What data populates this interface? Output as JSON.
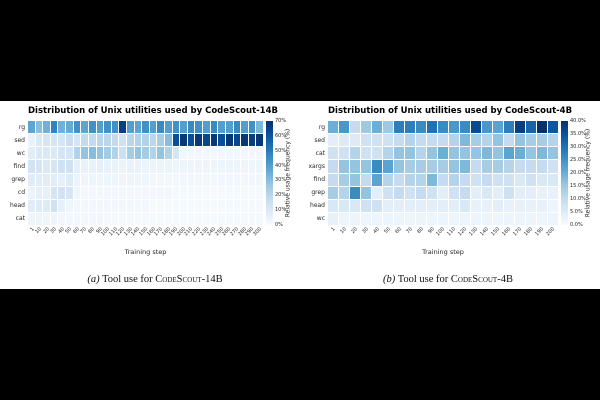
{
  "page": {
    "background_color": "#000000",
    "panel_color": "#ffffff"
  },
  "chart_data": [
    {
      "type": "heatmap",
      "title": "Distribution of Unix utilities used by CodeScout-14B",
      "xlabel": "Training step",
      "colormap": "Blues",
      "colorbar_label": "Relative usage frequency (%)",
      "colorbar_ticks": [
        "70%",
        "60%",
        "50%",
        "40%",
        "30%",
        "20%",
        "10%",
        "0%"
      ],
      "vmin": 0,
      "vmax": 70,
      "x_categories": [
        "1",
        "10",
        "20",
        "30",
        "40",
        "50",
        "60",
        "70",
        "80",
        "90",
        "100",
        "110",
        "120",
        "130",
        "140",
        "150",
        "160",
        "170",
        "180",
        "190",
        "200",
        "210",
        "220",
        "230",
        "240",
        "250",
        "260",
        "270",
        "280",
        "290",
        "300"
      ],
      "y_categories": [
        "rg",
        "sed",
        "wc",
        "find",
        "grep",
        "cd",
        "head",
        "cat"
      ],
      "values": [
        [
          38,
          30,
          34,
          48,
          34,
          36,
          44,
          38,
          44,
          40,
          44,
          44,
          66,
          40,
          38,
          44,
          40,
          46,
          40,
          44,
          40,
          46,
          44,
          40,
          46,
          40,
          40,
          46,
          40,
          44,
          32
        ],
        [
          5,
          10,
          12,
          12,
          12,
          16,
          12,
          18,
          18,
          20,
          20,
          18,
          14,
          20,
          22,
          22,
          20,
          24,
          30,
          62,
          68,
          62,
          68,
          64,
          68,
          62,
          68,
          64,
          68,
          66,
          68
        ],
        [
          8,
          10,
          10,
          10,
          12,
          12,
          22,
          28,
          30,
          28,
          25,
          22,
          15,
          25,
          28,
          25,
          22,
          28,
          22,
          12,
          2,
          2,
          2,
          2,
          2,
          2,
          2,
          2,
          2,
          2,
          2
        ],
        [
          13,
          12,
          10,
          12,
          14,
          14,
          6,
          5,
          5,
          6,
          5,
          5,
          4,
          5,
          5,
          4,
          4,
          4,
          4,
          3,
          3,
          3,
          3,
          3,
          3,
          3,
          3,
          3,
          3,
          3,
          3
        ],
        [
          8,
          8,
          8,
          8,
          6,
          9,
          4,
          3,
          3,
          3,
          3,
          3,
          3,
          3,
          3,
          3,
          2,
          2,
          2,
          2,
          2,
          2,
          2,
          2,
          2,
          2,
          2,
          2,
          2,
          2,
          2
        ],
        [
          4,
          6,
          6,
          12,
          13,
          12,
          3,
          2,
          2,
          2,
          2,
          2,
          2,
          2,
          2,
          2,
          2,
          2,
          2,
          1,
          1,
          1,
          1,
          1,
          1,
          1,
          1,
          1,
          1,
          1,
          1
        ],
        [
          8,
          9,
          9,
          14,
          6,
          3,
          2,
          2,
          2,
          2,
          2,
          2,
          2,
          2,
          2,
          2,
          1,
          1,
          1,
          1,
          1,
          1,
          1,
          1,
          1,
          1,
          1,
          1,
          1,
          1,
          1
        ],
        [
          3,
          3,
          3,
          3,
          2,
          2,
          2,
          2,
          2,
          2,
          1,
          1,
          1,
          1,
          1,
          1,
          1,
          1,
          1,
          1,
          1,
          1,
          1,
          1,
          1,
          1,
          1,
          1,
          1,
          1,
          1
        ]
      ]
    },
    {
      "type": "heatmap",
      "title": "Distribution of Unix utilities used by CodeScout-4B",
      "xlabel": "Training step",
      "colormap": "Blues",
      "colorbar_label": "Relative usage frequency (%)",
      "colorbar_ticks": [
        "40.0%",
        "35.0%",
        "30.0%",
        "25.0%",
        "20.0%",
        "15.0%",
        "10.0%",
        "5.0%",
        "0.0%"
      ],
      "vmin": 0,
      "vmax": 40,
      "x_categories": [
        "1",
        "10",
        "20",
        "30",
        "40",
        "50",
        "60",
        "70",
        "80",
        "90",
        "100",
        "110",
        "120",
        "130",
        "140",
        "150",
        "160",
        "170",
        "180",
        "190",
        "200"
      ],
      "y_categories": [
        "rg",
        "sed",
        "cat",
        "xargs",
        "find",
        "grep",
        "head",
        "wc"
      ],
      "values": [
        [
          20,
          24,
          10,
          15,
          20,
          15,
          28,
          28,
          26,
          30,
          26,
          24,
          26,
          36,
          24,
          22,
          28,
          38,
          32,
          40,
          34
        ],
        [
          4,
          5,
          5,
          8,
          8,
          8,
          10,
          12,
          10,
          10,
          10,
          12,
          18,
          14,
          12,
          16,
          10,
          16,
          14,
          14,
          12
        ],
        [
          8,
          8,
          12,
          8,
          8,
          12,
          16,
          16,
          12,
          16,
          20,
          16,
          16,
          16,
          18,
          16,
          22,
          20,
          16,
          18,
          16
        ],
        [
          10,
          16,
          16,
          16,
          26,
          22,
          16,
          14,
          14,
          14,
          14,
          16,
          18,
          10,
          14,
          14,
          12,
          10,
          10,
          10,
          8
        ],
        [
          10,
          14,
          16,
          10,
          22,
          12,
          10,
          12,
          12,
          18,
          10,
          12,
          10,
          8,
          10,
          8,
          8,
          6,
          8,
          6,
          6
        ],
        [
          14,
          12,
          26,
          16,
          4,
          8,
          10,
          8,
          10,
          8,
          4,
          8,
          10,
          4,
          6,
          4,
          8,
          4,
          4,
          3,
          3
        ],
        [
          6,
          6,
          6,
          8,
          8,
          4,
          4,
          4,
          4,
          4,
          4,
          4,
          6,
          3,
          3,
          4,
          3,
          3,
          3,
          3,
          2
        ],
        [
          3,
          2,
          2,
          2,
          2,
          2,
          2,
          2,
          2,
          2,
          2,
          2,
          2,
          2,
          2,
          2,
          2,
          2,
          2,
          2,
          2
        ]
      ]
    }
  ],
  "captions": [
    {
      "index": "(a)",
      "text": "Tool use for",
      "model": "CodeScout-14B"
    },
    {
      "index": "(b)",
      "text": "Tool use for",
      "model": "CodeScout-4B"
    }
  ]
}
